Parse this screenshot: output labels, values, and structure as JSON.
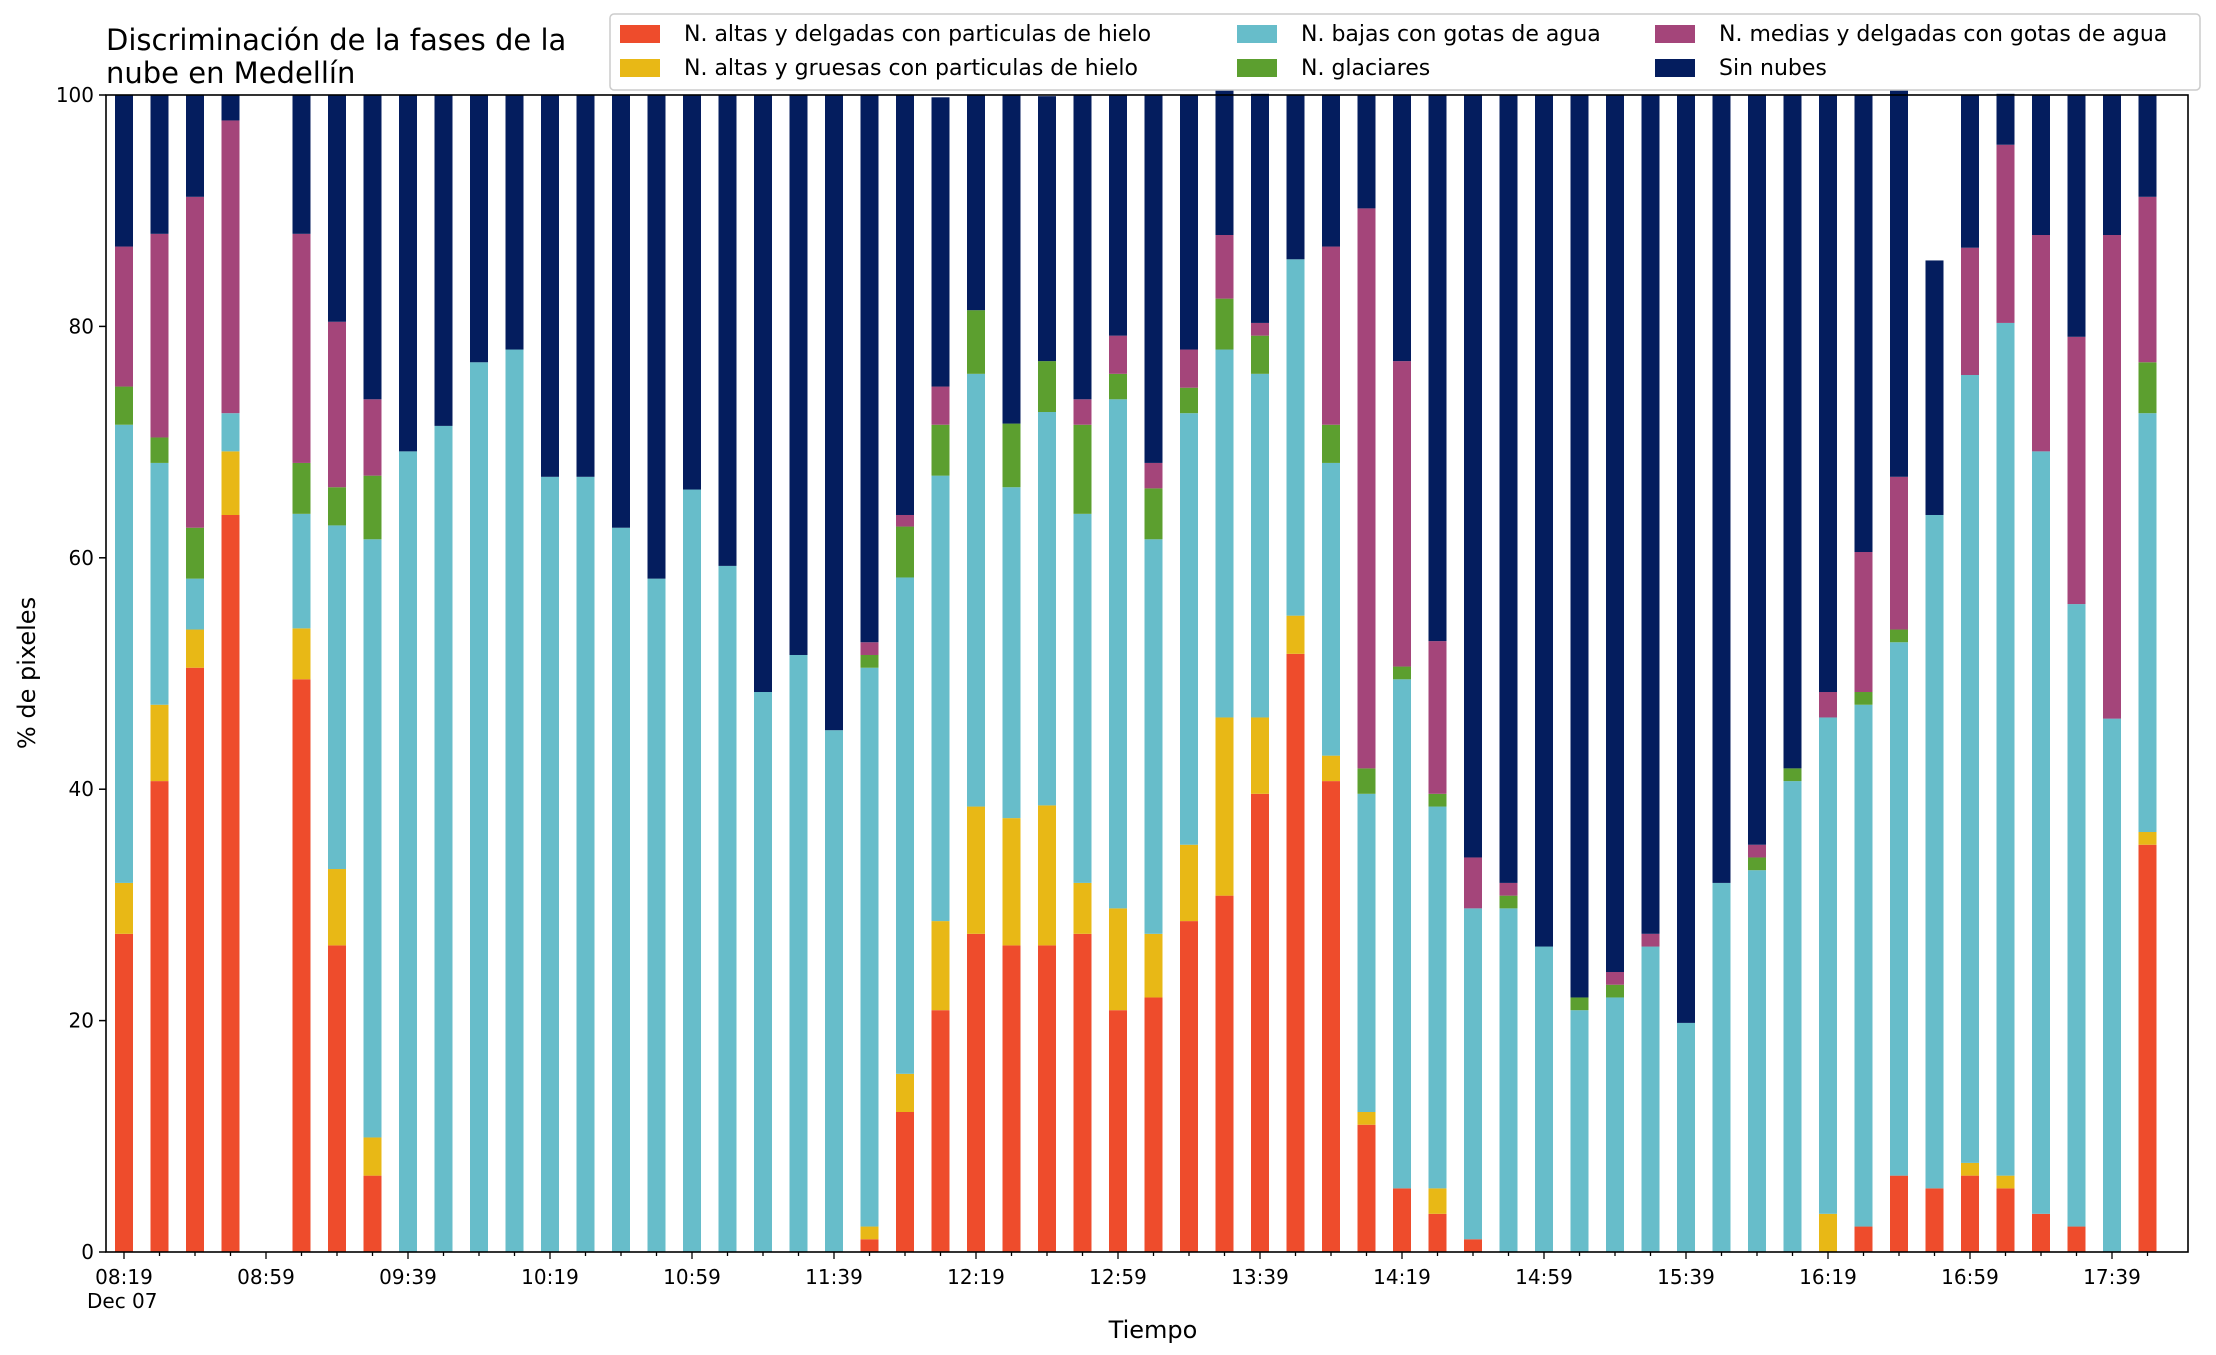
{
  "chart_data": {
    "type": "bar",
    "stacked": true,
    "title_lines": [
      "Discriminación de la fases de la",
      "nube en Medellín"
    ],
    "xlabel": "Tiempo",
    "ylabel": "% de pixeles",
    "ylim": [
      0,
      100
    ],
    "yticks": [
      0,
      20,
      40,
      60,
      80,
      100
    ],
    "xtick_labels": [
      "08:19",
      "08:59",
      "09:39",
      "10:19",
      "10:59",
      "11:39",
      "12:19",
      "12:59",
      "13:39",
      "14:19",
      "14:59",
      "15:39",
      "16:19",
      "16:59",
      "17:39"
    ],
    "xtick_date": "Dec 07",
    "grid": false,
    "legend_position": "top-right",
    "categories": [
      "08:19",
      "08:29",
      "08:39",
      "08:49",
      "08:59",
      "09:09",
      "09:19",
      "09:29",
      "09:39",
      "09:49",
      "09:59",
      "10:09",
      "10:19",
      "10:29",
      "10:39",
      "10:49",
      "10:59",
      "11:09",
      "11:19",
      "11:29",
      "11:39",
      "11:49",
      "11:59",
      "12:09",
      "12:19",
      "12:29",
      "12:39",
      "12:49",
      "12:59",
      "13:09",
      "13:19",
      "13:29",
      "13:39",
      "13:49",
      "13:59",
      "14:09",
      "14:19",
      "14:29",
      "14:39",
      "14:49",
      "14:59",
      "15:09",
      "15:19",
      "15:29",
      "15:39",
      "15:49",
      "15:59",
      "16:09",
      "16:19",
      "16:29",
      "16:39",
      "16:49",
      "16:59",
      "17:09",
      "17:19",
      "17:29",
      "17:39",
      "17:49"
    ],
    "series": [
      {
        "name": "N. altas y delgadas con particulas de hielo",
        "color": "#ee4c2c",
        "values": [
          27.5,
          40.7,
          50.5,
          63.7,
          0,
          49.5,
          26.5,
          6.6,
          0,
          0,
          0,
          0,
          0,
          0,
          0,
          0,
          0,
          0,
          0,
          0,
          0,
          1.1,
          12.1,
          20.9,
          27.5,
          26.5,
          26.5,
          27.5,
          20.9,
          22.0,
          28.6,
          30.8,
          39.6,
          51.7,
          40.7,
          11.0,
          5.5,
          3.3,
          1.1,
          0,
          0,
          0,
          0,
          0,
          0,
          0,
          0,
          0,
          0,
          2.2,
          6.6,
          5.5,
          6.6,
          5.5,
          3.3,
          2.2,
          0,
          35.2
        ]
      },
      {
        "name": "N. altas y gruesas con particulas de hielo",
        "color": "#e8b816",
        "values": [
          4.4,
          6.6,
          3.3,
          5.5,
          0,
          4.4,
          6.6,
          3.3,
          0,
          0,
          0,
          0,
          0,
          0,
          0,
          0,
          0,
          0,
          0,
          0,
          0,
          1.1,
          3.3,
          7.7,
          11.0,
          11.0,
          12.1,
          4.4,
          8.8,
          5.5,
          6.6,
          15.4,
          6.6,
          3.3,
          2.2,
          1.1,
          0,
          2.2,
          0,
          0,
          0,
          0,
          0,
          0,
          0,
          0,
          0,
          0,
          3.3,
          0,
          0,
          0,
          1.1,
          1.1,
          0,
          0,
          0,
          1.1
        ]
      },
      {
        "name": "N. bajas con gotas de agua",
        "color": "#67bdca",
        "values": [
          39.6,
          20.9,
          4.4,
          3.3,
          0,
          9.9,
          29.7,
          51.7,
          69.2,
          71.4,
          76.9,
          78.0,
          67.0,
          67.0,
          62.6,
          58.2,
          65.9,
          59.3,
          48.4,
          51.6,
          45.1,
          48.3,
          42.9,
          38.5,
          37.4,
          28.6,
          34.0,
          31.9,
          44.0,
          34.1,
          37.3,
          31.8,
          29.7,
          30.8,
          25.3,
          27.5,
          44.0,
          33.0,
          28.6,
          29.7,
          26.4,
          20.9,
          22.0,
          26.4,
          19.8,
          31.9,
          33.0,
          40.7,
          42.9,
          45.1,
          46.1,
          58.2,
          68.1,
          73.7,
          65.9,
          53.8,
          46.1,
          36.2
        ]
      },
      {
        "name": "N. glaciares",
        "color": "#5c9f2f",
        "values": [
          3.3,
          2.2,
          4.4,
          0,
          0,
          4.4,
          3.3,
          5.5,
          0,
          0,
          0,
          0,
          0,
          0,
          0,
          0,
          0,
          0,
          0,
          0,
          0,
          1.1,
          4.4,
          4.4,
          5.5,
          5.5,
          4.4,
          7.7,
          2.2,
          4.4,
          2.2,
          4.4,
          3.3,
          0,
          3.3,
          2.2,
          1.1,
          1.1,
          0,
          1.1,
          0,
          1.1,
          1.1,
          0,
          0,
          0,
          1.1,
          1.1,
          0,
          1.1,
          1.1,
          0,
          0,
          0,
          0,
          0,
          0,
          4.4
        ]
      },
      {
        "name": "N. medias y delgadas con gotas de agua",
        "color": "#a4457a",
        "values": [
          12.1,
          17.6,
          28.6,
          25.3,
          0,
          19.8,
          14.3,
          6.6,
          0,
          0,
          0,
          0,
          0,
          0,
          0,
          0,
          0,
          0,
          0,
          0,
          0,
          1.1,
          1.0,
          3.3,
          0,
          0,
          0,
          2.2,
          3.3,
          2.2,
          3.3,
          5.5,
          1.1,
          0,
          15.4,
          48.4,
          26.4,
          13.2,
          4.4,
          1.1,
          0,
          0,
          1.1,
          1.1,
          0,
          0,
          1.1,
          0,
          2.2,
          12.1,
          13.2,
          0,
          11.0,
          15.4,
          18.7,
          23.1,
          41.8,
          14.3
        ]
      },
      {
        "name": "Sin nubes",
        "color": "#041d5e",
        "values": [
          13.1,
          12.0,
          8.8,
          2.2,
          0,
          12.0,
          19.6,
          26.3,
          30.8,
          28.6,
          23.1,
          22.0,
          33.0,
          33.0,
          37.4,
          41.8,
          34.1,
          40.7,
          51.6,
          48.4,
          54.9,
          47.3,
          36.3,
          25.0,
          18.6,
          28.4,
          22.9,
          26.3,
          20.8,
          31.8,
          22.0,
          17.5,
          19.8,
          14.2,
          13.1,
          9.8,
          23.0,
          47.2,
          65.9,
          68.1,
          73.6,
          78.0,
          75.8,
          72.5,
          80.2,
          68.1,
          64.8,
          58.2,
          51.6,
          39.5,
          35.2,
          22.0,
          13.2,
          4.4,
          12.1,
          20.9,
          12.1,
          8.8
        ]
      }
    ]
  }
}
